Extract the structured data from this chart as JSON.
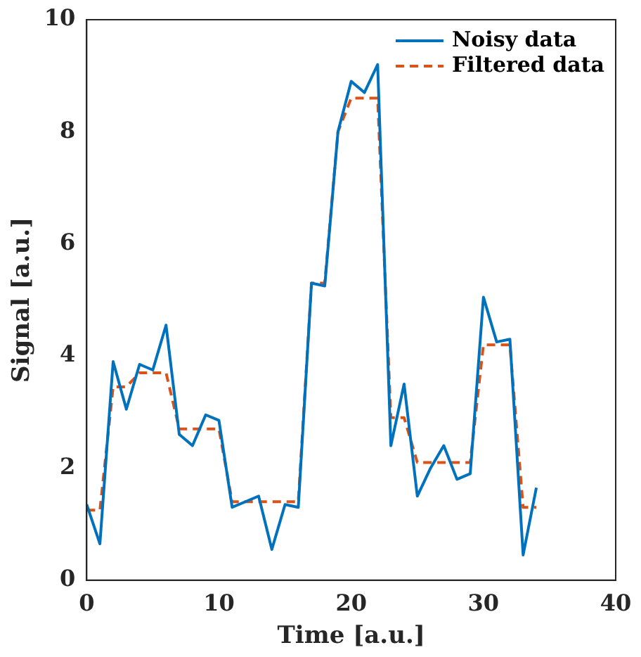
{
  "chart_data": {
    "type": "line",
    "xlabel": "Time [a.u.]",
    "ylabel": "Signal [a.u.]",
    "x": [
      0,
      1,
      2,
      3,
      4,
      5,
      6,
      7,
      8,
      9,
      10,
      11,
      12,
      13,
      14,
      15,
      16,
      17,
      18,
      19,
      20,
      21,
      22,
      23,
      24,
      25,
      26,
      27,
      28,
      29,
      30,
      31,
      32,
      33,
      34
    ],
    "series": [
      {
        "name": "Noisy data",
        "color": "#0072bd",
        "line_style": "solid",
        "values": [
          1.35,
          0.65,
          3.9,
          3.05,
          3.85,
          3.75,
          4.55,
          2.6,
          2.4,
          2.95,
          2.85,
          1.3,
          1.4,
          1.5,
          0.55,
          1.35,
          1.3,
          5.3,
          5.25,
          8.0,
          8.9,
          8.7,
          9.2,
          2.4,
          3.5,
          1.5,
          2.0,
          2.4,
          1.8,
          1.9,
          5.05,
          4.25,
          4.3,
          0.45,
          1.65
        ]
      },
      {
        "name": "Filtered data",
        "color": "#d95319",
        "line_style": "dashed",
        "values": [
          1.25,
          1.25,
          3.45,
          3.45,
          3.7,
          3.7,
          3.7,
          2.7,
          2.7,
          2.7,
          2.7,
          1.4,
          1.4,
          1.4,
          1.4,
          1.4,
          1.4,
          5.3,
          5.3,
          8.0,
          8.6,
          8.6,
          8.6,
          2.9,
          2.9,
          2.1,
          2.1,
          2.1,
          2.1,
          2.1,
          4.2,
          4.2,
          4.2,
          1.3,
          1.3
        ]
      }
    ],
    "xlim": [
      0,
      40
    ],
    "xticks": [
      0,
      10,
      20,
      30,
      40
    ],
    "ylim": [
      0,
      10
    ],
    "yticks": [
      0,
      2,
      4,
      6,
      8,
      10
    ],
    "grid": false,
    "legend": "top right",
    "marker": "none"
  }
}
